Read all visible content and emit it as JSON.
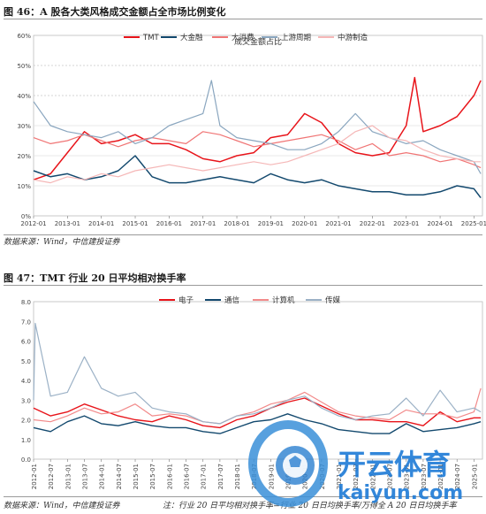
{
  "figure1": {
    "title": "图 46：A 股各大类风格成交金额占全市场比例变化",
    "source": "数据来源：Wind，中信建投证券"
  },
  "figure2": {
    "title": "图 47：TMT 行业 20 日平均相对换手率",
    "source": "数据来源：Wind，中信建投证券",
    "note": "注：行业 20 日平均相对换手率=行业 20 日日均换手率/万得全 A 20 日日均换手率"
  },
  "watermark": {
    "brand_text": "开云体育",
    "domain_text": "kaiyun.com"
  },
  "chart_data": [
    {
      "type": "line",
      "title": "成交金额占比",
      "x_tick_labels": [
        "2012-01",
        "2013-01",
        "2014-01",
        "2015-01",
        "2016-01",
        "2017-01",
        "2018-01",
        "2019-01",
        "2020-01",
        "2021-01",
        "2022-01",
        "2023-01",
        "2024-01",
        "2025-01"
      ],
      "x_range": [
        2012.0,
        2025.25
      ],
      "y_tick_labels": [
        "0%",
        "10%",
        "20%",
        "30%",
        "40%",
        "50%",
        "60%"
      ],
      "ylim": [
        0,
        60
      ],
      "grid": "horizontal",
      "legend_position": "top",
      "series": [
        {
          "name": "TMT",
          "color": "#e8141a",
          "width": 1.5,
          "x": [
            2012.0,
            2012.5,
            2013.0,
            2013.5,
            2014.0,
            2014.5,
            2015.0,
            2015.5,
            2016.0,
            2016.5,
            2017.0,
            2017.5,
            2018.0,
            2018.5,
            2019.0,
            2019.5,
            2020.0,
            2020.5,
            2021.0,
            2021.5,
            2022.0,
            2022.5,
            2023.0,
            2023.25,
            2023.5,
            2024.0,
            2024.5,
            2025.0,
            2025.2
          ],
          "y": [
            12,
            14,
            21,
            28,
            24,
            25,
            27,
            24,
            24,
            22,
            19,
            18,
            20,
            21,
            26,
            27,
            34,
            31,
            24,
            21,
            20,
            21,
            30,
            46,
            28,
            30,
            33,
            40,
            45
          ]
        },
        {
          "name": "大金融",
          "color": "#13496e",
          "width": 1.5,
          "x": [
            2012.0,
            2012.5,
            2013.0,
            2013.5,
            2014.0,
            2014.5,
            2015.0,
            2015.5,
            2016.0,
            2016.5,
            2017.0,
            2017.5,
            2018.0,
            2018.5,
            2019.0,
            2019.5,
            2020.0,
            2020.5,
            2021.0,
            2021.5,
            2022.0,
            2022.5,
            2023.0,
            2023.5,
            2024.0,
            2024.5,
            2025.0,
            2025.2
          ],
          "y": [
            15,
            13,
            14,
            12,
            13,
            15,
            20,
            13,
            11,
            11,
            12,
            13,
            12,
            11,
            14,
            12,
            11,
            12,
            10,
            9,
            8,
            8,
            7,
            7,
            8,
            10,
            9,
            6
          ]
        },
        {
          "name": "大消费",
          "color": "#f07575",
          "width": 1.2,
          "x": [
            2012.0,
            2012.5,
            2013.0,
            2013.5,
            2014.0,
            2014.5,
            2015.0,
            2015.5,
            2016.0,
            2016.5,
            2017.0,
            2017.5,
            2018.0,
            2018.5,
            2019.0,
            2019.5,
            2020.0,
            2020.5,
            2021.0,
            2021.5,
            2022.0,
            2022.5,
            2023.0,
            2023.5,
            2024.0,
            2024.5,
            2025.0,
            2025.2
          ],
          "y": [
            26,
            24,
            25,
            27,
            25,
            23,
            25,
            26,
            25,
            24,
            28,
            27,
            25,
            23,
            24,
            25,
            26,
            27,
            25,
            22,
            24,
            20,
            21,
            20,
            18,
            19,
            17,
            16
          ]
        },
        {
          "name": "上游周期",
          "color": "#8aa6bf",
          "width": 1.2,
          "x": [
            2012.0,
            2012.5,
            2013.0,
            2013.5,
            2014.0,
            2014.5,
            2015.0,
            2015.5,
            2016.0,
            2016.5,
            2017.0,
            2017.25,
            2017.5,
            2018.0,
            2018.5,
            2019.0,
            2019.5,
            2020.0,
            2020.5,
            2021.0,
            2021.5,
            2022.0,
            2022.5,
            2023.0,
            2023.5,
            2024.0,
            2024.5,
            2025.0,
            2025.2
          ],
          "y": [
            38,
            30,
            28,
            27,
            26,
            28,
            24,
            26,
            30,
            32,
            34,
            45,
            30,
            26,
            25,
            24,
            22,
            22,
            24,
            28,
            34,
            28,
            26,
            24,
            25,
            22,
            20,
            18,
            14
          ]
        },
        {
          "name": "中游制造",
          "color": "#f5b7b7",
          "width": 1.2,
          "x": [
            2012.0,
            2012.5,
            2013.0,
            2013.5,
            2014.0,
            2014.5,
            2015.0,
            2015.5,
            2016.0,
            2016.5,
            2017.0,
            2017.5,
            2018.0,
            2018.5,
            2019.0,
            2019.5,
            2020.0,
            2020.5,
            2021.0,
            2021.5,
            2022.0,
            2022.5,
            2023.0,
            2023.5,
            2024.0,
            2024.5,
            2025.0,
            2025.2
          ],
          "y": [
            12,
            11,
            13,
            12,
            14,
            13,
            15,
            16,
            17,
            16,
            15,
            16,
            17,
            18,
            17,
            18,
            20,
            22,
            24,
            28,
            30,
            26,
            25,
            22,
            20,
            19,
            18,
            18
          ]
        }
      ]
    },
    {
      "type": "line",
      "title": "",
      "x_tick_labels": [
        "2012-01",
        "2012-07",
        "2013-01",
        "2013-07",
        "2014-01",
        "2014-07",
        "2015-01",
        "2015-07",
        "2016-01",
        "2016-07",
        "2017-01",
        "2017-07",
        "2018-01",
        "2018-07",
        "2019-01",
        "2019-07",
        "2020-01",
        "2020-07",
        "2021-01",
        "2021-07",
        "2022-01",
        "2022-07",
        "2023-01",
        "2023-07",
        "2024-01",
        "2024-07",
        "2025-01"
      ],
      "x_range": [
        2012.0,
        2025.25
      ],
      "y_tick_labels": [
        "0.0",
        "1.0",
        "2.0",
        "3.0",
        "4.0",
        "5.0",
        "6.0",
        "7.0",
        "8.0"
      ],
      "ylim": [
        0,
        8
      ],
      "grid": "none",
      "legend_position": "top",
      "series": [
        {
          "name": "电子",
          "color": "#e8141a",
          "width": 1.4,
          "x": [
            2012.0,
            2012.5,
            2013.0,
            2013.5,
            2014.0,
            2014.5,
            2015.0,
            2015.5,
            2016.0,
            2016.5,
            2017.0,
            2017.5,
            2018.0,
            2018.5,
            2019.0,
            2019.5,
            2020.0,
            2020.5,
            2021.0,
            2021.5,
            2022.0,
            2022.5,
            2023.0,
            2023.5,
            2024.0,
            2024.5,
            2025.0,
            2025.2
          ],
          "y": [
            2.6,
            2.2,
            2.4,
            2.8,
            2.5,
            2.2,
            2.0,
            1.9,
            2.2,
            2.0,
            1.7,
            1.6,
            2.0,
            2.2,
            2.6,
            2.9,
            3.1,
            2.7,
            2.3,
            2.0,
            2.0,
            1.9,
            1.9,
            1.7,
            2.4,
            1.9,
            2.1,
            2.1
          ]
        },
        {
          "name": "通信",
          "color": "#13496e",
          "width": 1.4,
          "x": [
            2012.0,
            2012.5,
            2013.0,
            2013.5,
            2014.0,
            2014.5,
            2015.0,
            2015.5,
            2016.0,
            2016.5,
            2017.0,
            2017.5,
            2018.0,
            2018.5,
            2019.0,
            2019.5,
            2020.0,
            2020.5,
            2021.0,
            2021.5,
            2022.0,
            2022.5,
            2023.0,
            2023.5,
            2024.0,
            2024.5,
            2025.0,
            2025.2
          ],
          "y": [
            1.6,
            1.4,
            1.9,
            2.2,
            1.8,
            1.7,
            1.9,
            1.7,
            1.6,
            1.6,
            1.4,
            1.3,
            1.6,
            1.9,
            2.0,
            2.3,
            2.0,
            1.8,
            1.5,
            1.4,
            1.3,
            1.3,
            1.8,
            1.4,
            1.5,
            1.6,
            1.8,
            1.9
          ]
        },
        {
          "name": "计算机",
          "color": "#f28a8a",
          "width": 1.2,
          "x": [
            2012.0,
            2012.5,
            2013.0,
            2013.5,
            2014.0,
            2014.5,
            2015.0,
            2015.5,
            2016.0,
            2016.5,
            2017.0,
            2017.5,
            2018.0,
            2018.5,
            2019.0,
            2019.5,
            2020.0,
            2020.5,
            2021.0,
            2021.5,
            2022.0,
            2022.5,
            2023.0,
            2023.5,
            2024.0,
            2024.5,
            2025.0,
            2025.2
          ],
          "y": [
            2.0,
            1.9,
            2.2,
            2.6,
            2.3,
            2.4,
            2.8,
            2.2,
            2.3,
            2.2,
            1.9,
            1.8,
            2.2,
            2.4,
            2.8,
            3.0,
            3.4,
            2.9,
            2.4,
            2.2,
            2.1,
            2.0,
            2.5,
            2.3,
            2.3,
            2.1,
            2.4,
            3.6
          ]
        },
        {
          "name": "传媒",
          "color": "#9bb1c6",
          "width": 1.2,
          "x": [
            2012.0,
            2012.05,
            2012.5,
            2013.0,
            2013.5,
            2014.0,
            2014.5,
            2015.0,
            2015.5,
            2016.0,
            2016.5,
            2017.0,
            2017.5,
            2018.0,
            2018.5,
            2019.0,
            2019.5,
            2020.0,
            2020.5,
            2021.0,
            2021.5,
            2022.0,
            2022.5,
            2023.0,
            2023.5,
            2024.0,
            2024.5,
            2025.0,
            2025.2
          ],
          "y": [
            3.0,
            6.9,
            3.2,
            3.4,
            5.2,
            3.6,
            3.2,
            3.4,
            2.6,
            2.4,
            2.3,
            1.9,
            1.8,
            2.2,
            2.3,
            2.6,
            3.0,
            3.2,
            2.6,
            2.2,
            2.0,
            2.2,
            2.3,
            3.1,
            2.2,
            3.5,
            2.4,
            2.6,
            2.4
          ]
        }
      ]
    }
  ]
}
